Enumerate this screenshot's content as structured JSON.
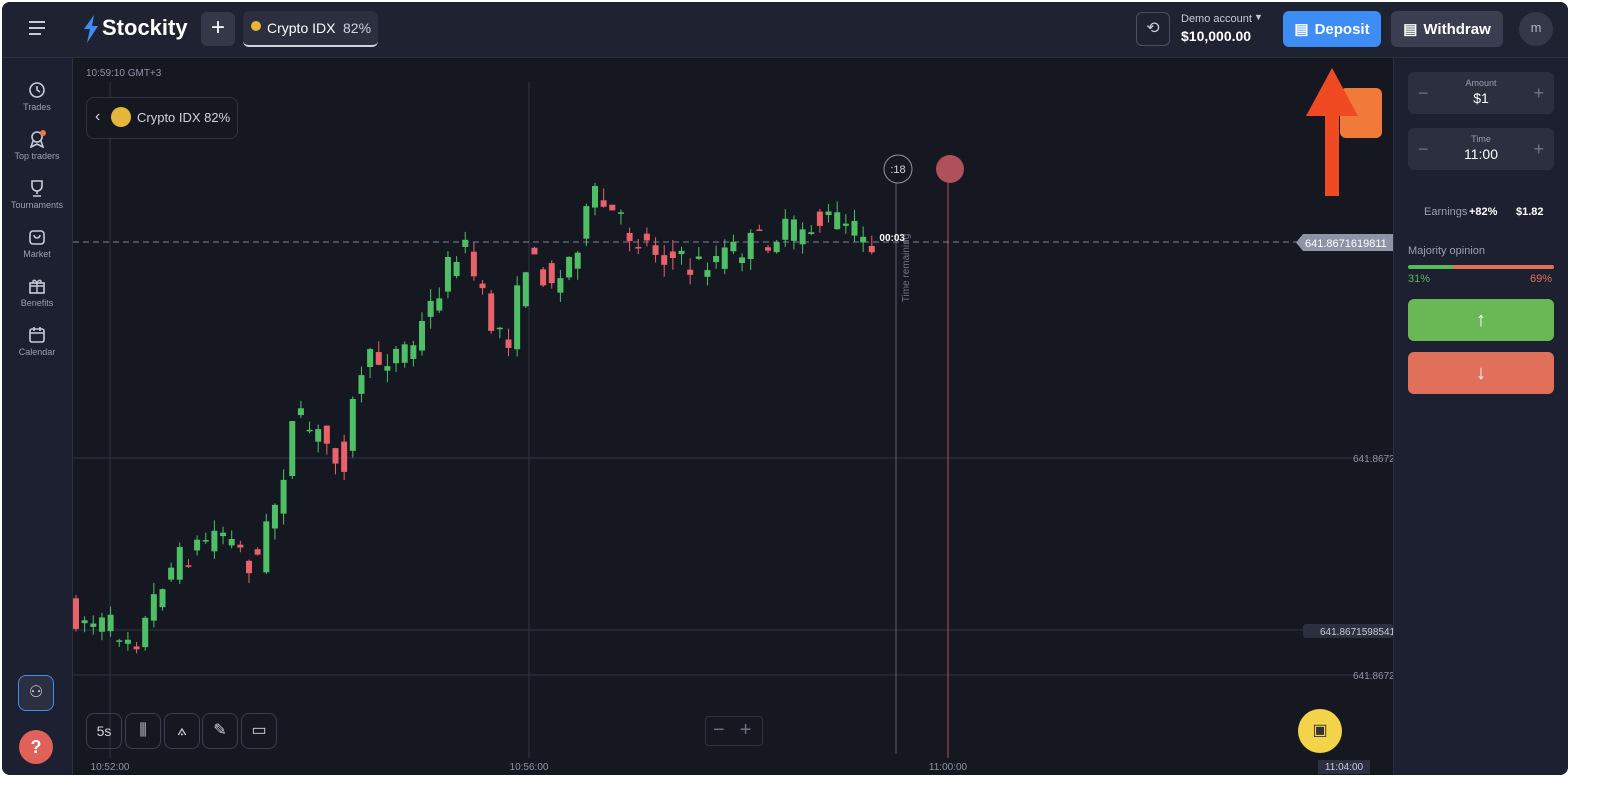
{
  "header": {
    "logo": "Stockity",
    "asset": "Crypto IDX",
    "payout": "82%",
    "account_label": "Demo account",
    "balance": "$10,000.00",
    "deposit": "Deposit",
    "withdraw": "Withdraw",
    "avatar": "m"
  },
  "sidebar": {
    "items": [
      "Trades",
      "Top traders",
      "Tournaments",
      "Market",
      "Benefits",
      "Calendar"
    ]
  },
  "chart": {
    "clock": "10:59:10 GMT+3",
    "asset_badge": "Crypto IDX 82%",
    "timer": ":18",
    "countdown": "00:03",
    "timer_caption": "Time remaining",
    "price_labels": [
      "641.8671619811",
      "641.8672",
      "641.8671598541",
      "641.8672"
    ],
    "time_labels": [
      "10:52:00",
      "10:56:00",
      "11:00:00",
      "11:04:00"
    ],
    "interval": "5s"
  },
  "panel": {
    "amount_label": "Amount",
    "amount": "$1",
    "time_label": "Time",
    "time": "11:00",
    "earnings_label": "Earnings",
    "earnings_pct": "+82%",
    "earnings_value": "$1.82",
    "opinion_label": "Majority opinion",
    "up_share": "31%",
    "down_share": "69%"
  }
}
